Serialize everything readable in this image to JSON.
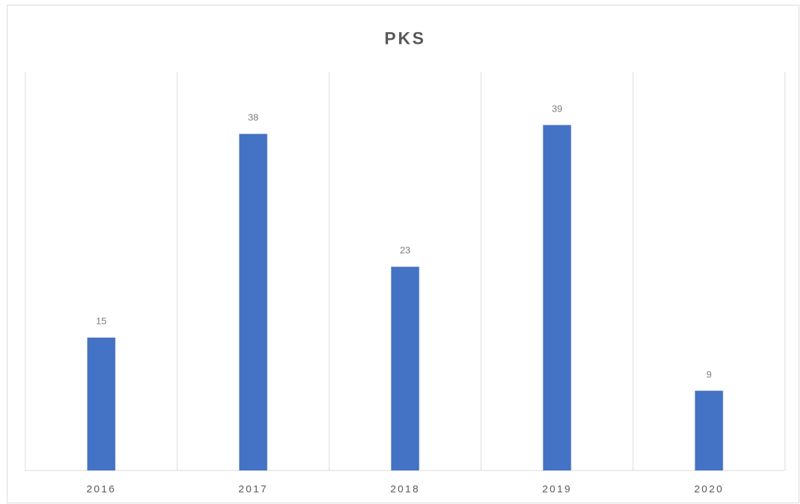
{
  "chart_data": {
    "type": "bar",
    "title": "PKS",
    "categories": [
      "2016",
      "2017",
      "2018",
      "2019",
      "2020"
    ],
    "values": [
      15,
      38,
      23,
      39,
      9
    ],
    "color": "#4472c4",
    "ylim": [
      0,
      45
    ]
  }
}
